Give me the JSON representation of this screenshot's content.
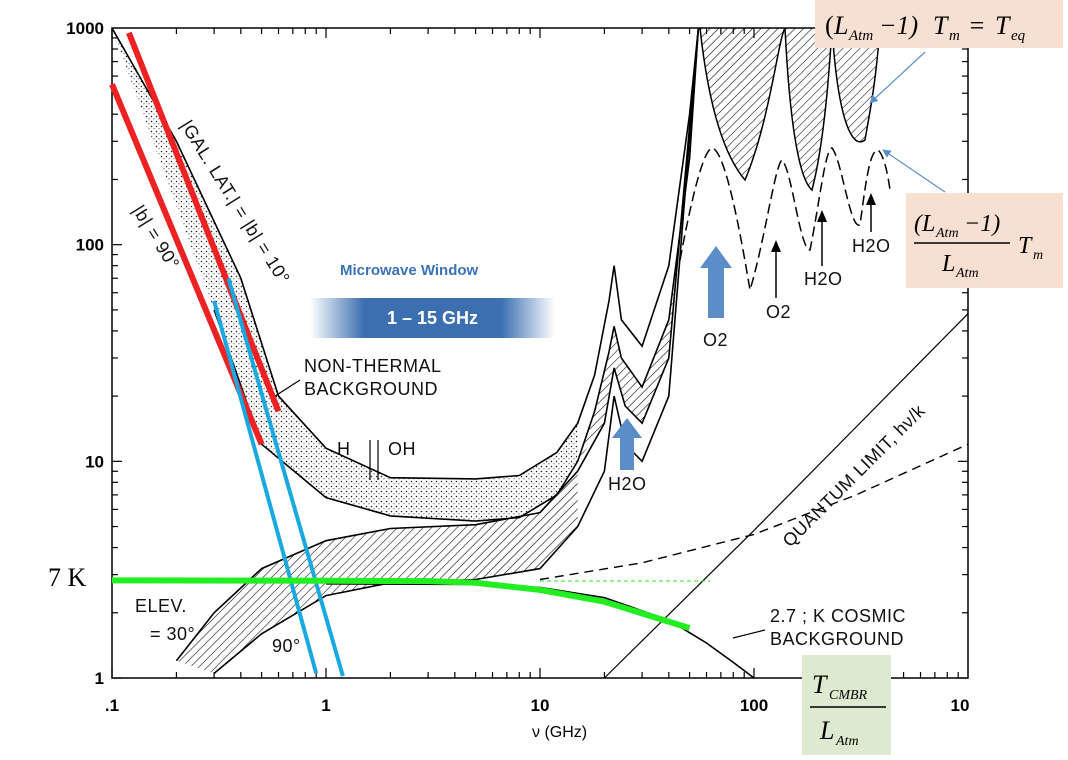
{
  "chart_data": {
    "type": "line",
    "x_scale": "log",
    "y_scale": "log",
    "xlim": [
      0.1,
      1000
    ],
    "ylim": [
      1,
      1000
    ],
    "x_ticks": [
      ".1",
      "1",
      "10",
      "100",
      "10"
    ],
    "y_ticks": [
      "1000",
      "100",
      "10",
      "1"
    ],
    "xlabel": "ν (GHz)",
    "grid": false,
    "series": [
      {
        "name": "NON-THERMAL BACKGROUND upper",
        "x": [
          0.1,
          0.2,
          0.4,
          0.6,
          1,
          2,
          5,
          8,
          12,
          15,
          18,
          21,
          22.2,
          24,
          30,
          40,
          50,
          55
        ],
        "y": [
          1000,
          300,
          70,
          20,
          11.5,
          8.4,
          8.3,
          8.6,
          11,
          15,
          25,
          55,
          80,
          45,
          34,
          80,
          400,
          1000
        ]
      },
      {
        "name": "NON-THERMAL BACKGROUND lower",
        "x": [
          0.3,
          0.5,
          1,
          2,
          5,
          8,
          12,
          15,
          18,
          21,
          22.2,
          24,
          30,
          40,
          50,
          55
        ],
        "y": [
          50,
          12,
          6.8,
          5.6,
          5.3,
          5.5,
          7,
          10,
          17,
          32,
          42,
          30,
          22,
          45,
          250,
          1000
        ]
      },
      {
        "name": "ELEV. = 30°",
        "x": [
          0.2,
          0.3,
          0.5,
          1,
          2,
          5,
          10,
          15,
          20,
          22.2,
          25,
          30,
          40,
          55
        ],
        "y": [
          1.2,
          2,
          3.2,
          4.3,
          4.9,
          5.1,
          5.8,
          9,
          15,
          27,
          18,
          15,
          30,
          1000
        ]
      },
      {
        "name": "90°",
        "x": [
          0.3,
          0.5,
          1,
          2,
          5,
          10,
          15,
          20,
          22.2,
          25,
          30,
          40,
          55
        ],
        "y": [
          1.05,
          1.6,
          2.4,
          2.75,
          2.85,
          3.2,
          5,
          9,
          20,
          12,
          10,
          20,
          1000
        ]
      },
      {
        "name": "2.7 K COSMIC BACKGROUND",
        "x": [
          1,
          5,
          10,
          20,
          40,
          60,
          80,
          100
        ],
        "y": [
          2.72,
          2.7,
          2.62,
          2.35,
          1.85,
          1.45,
          1.18,
          1
        ]
      },
      {
        "name": "QUANTUM LIMIT, hν/k",
        "x": [
          20,
          100,
          1000
        ],
        "y": [
          1,
          4.8,
          48
        ]
      },
      {
        "name": "red line A",
        "x": [
          0.1,
          0.5
        ],
        "y": [
          550,
          12
        ]
      },
      {
        "name": "red line B",
        "x": [
          0.12,
          0.6
        ],
        "y": [
          950,
          17
        ]
      },
      {
        "name": "blue line A",
        "x": [
          0.3,
          0.9
        ],
        "y": [
          55,
          1.05
        ]
      },
      {
        "name": "blue line B",
        "x": [
          0.35,
          1.2
        ],
        "y": [
          70,
          1.02
        ]
      },
      {
        "name": "green line",
        "x": [
          0.1,
          1,
          3,
          5,
          10,
          20,
          50
        ],
        "y": [
          2.82,
          2.81,
          2.8,
          2.75,
          2.55,
          2.25,
          1.7
        ]
      }
    ],
    "annotations": {
      "non_thermal": [
        "NON-THERMAL",
        "BACKGROUND"
      ],
      "gal_lat": "|GAL. LAT.| = |b| = 10°",
      "b90": "|b| = 90°",
      "elev": [
        "ELEV.",
        "= 30°"
      ],
      "deg90": "90°",
      "h": "H",
      "oh": "OH",
      "cosmic": [
        "2.7 ; K COSMIC",
        "BACKGROUND"
      ],
      "quantum": "QUANTUM LIMIT, hν/k",
      "h2o_1": "H2O",
      "o2_1": "O2",
      "o2_2": "O2",
      "h2o_2": "H2O",
      "h2o_3": "H2O"
    }
  },
  "overlay": {
    "microwave_title": "Microwave Window",
    "microwave_band": "1 – 15 GHz",
    "seven_k": "7 K",
    "eq_box": "(L_Atm − 1) T_m = T_eq",
    "ratio_box": "(L_Atm − 1) / L_Atm · T_m",
    "cmbr_box": "T_CMBR / L_Atm"
  },
  "colors": {
    "red": "#ee2222",
    "blue": "#1aa8e0",
    "green": "#22ee22",
    "arrow": "#5b8ec9",
    "box_peach": "#f7e0d2",
    "box_green": "#dcebd0"
  }
}
